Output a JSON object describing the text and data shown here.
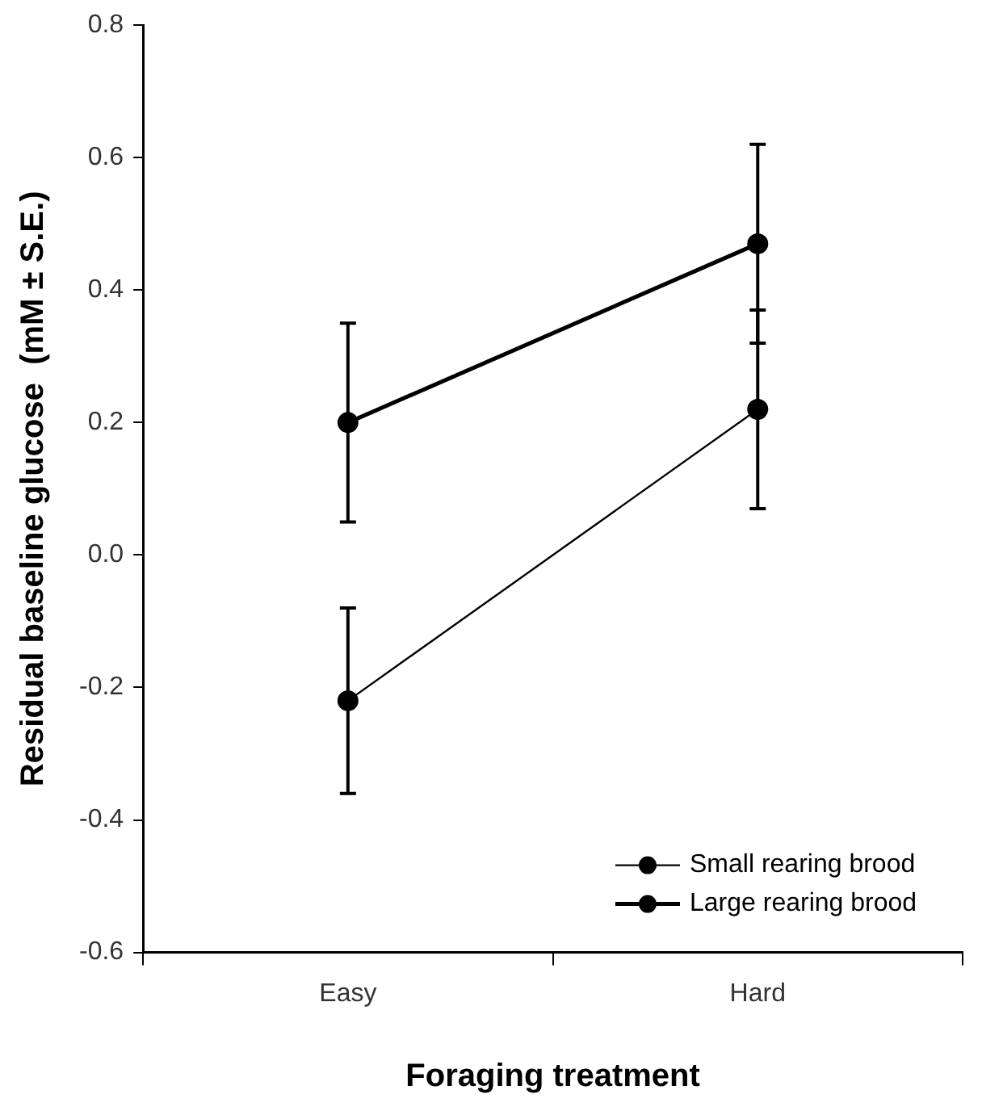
{
  "chart_data": {
    "type": "line",
    "xlabel": "Foraging treatment",
    "ylabel": "Residual baseline glucose  (mM ± S.E.)",
    "categories": [
      "Easy",
      "Hard"
    ],
    "series": [
      {
        "name": "Small rearing brood",
        "color": "#000000",
        "values": [
          -0.22,
          0.22
        ],
        "errors": [
          0.14,
          0.15
        ]
      },
      {
        "name": "Large rearing brood",
        "color": "#000000",
        "values": [
          0.2,
          0.47
        ],
        "errors": [
          0.15,
          0.15
        ]
      }
    ],
    "ylim": [
      -0.6,
      0.8
    ],
    "yticks": [
      -0.6,
      -0.4,
      -0.2,
      {
        "value": 0,
        "label": "0.0"
      },
      0.2,
      0.4,
      0.6,
      0.8
    ],
    "grid": false,
    "legend": "bottom right",
    "marker": "circle",
    "line_style": "solid"
  }
}
